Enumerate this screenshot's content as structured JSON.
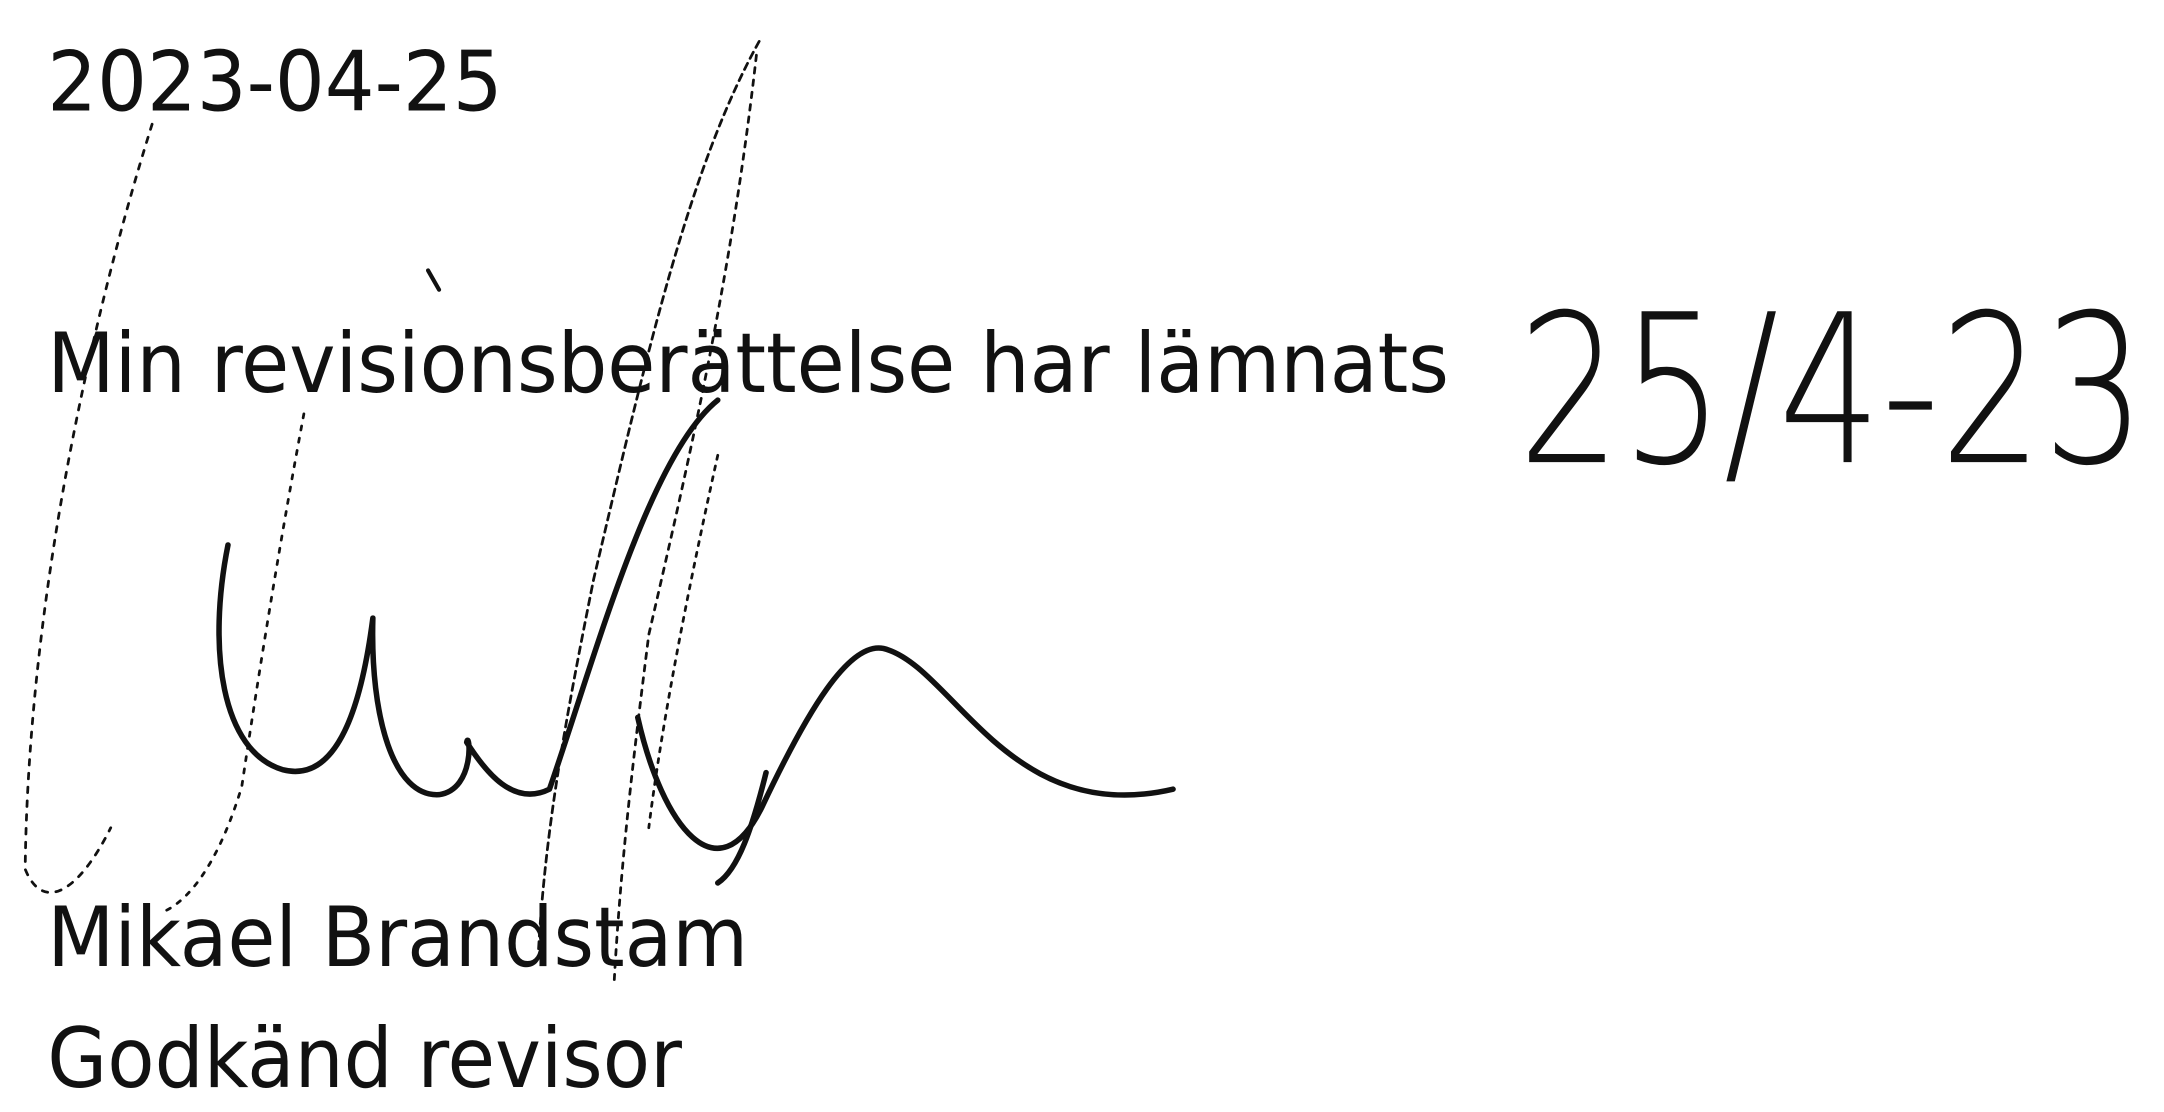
{
  "date": "2023-04-25",
  "statement": "Min revisionsberättelse har lämnats",
  "handwritten_date": "25/4-23",
  "signer": {
    "name": "Mikael Brandstam",
    "title": "Godkänd revisor"
  }
}
